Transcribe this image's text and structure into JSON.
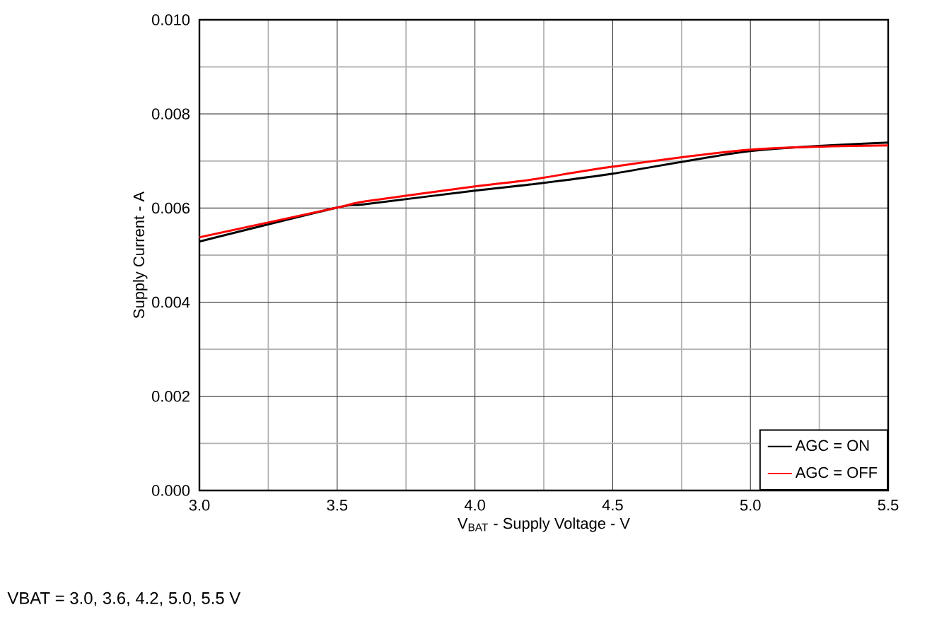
{
  "chart_data": {
    "type": "line",
    "xlabel": "V$_{BAT}$ - Supply Voltage - V",
    "ylabel": "Supply Current - A",
    "x": [
      3.0,
      3.5,
      3.6,
      4.0,
      4.2,
      4.5,
      5.0,
      5.5
    ],
    "series": [
      {
        "name": "AGC = ON",
        "color": "#000000",
        "values": [
          0.00529,
          0.00601,
          0.00608,
          0.00637,
          0.0065,
          0.00673,
          0.00721,
          0.00739
        ]
      },
      {
        "name": "AGC = OFF",
        "color": "#ff0000",
        "values": [
          0.00538,
          0.00601,
          0.00614,
          0.00646,
          0.0066,
          0.00688,
          0.00724,
          0.00733
        ]
      }
    ],
    "xlim": [
      3.0,
      5.5
    ],
    "ylim": [
      0.0,
      0.01
    ],
    "xticks": [
      {
        "value": 3.0,
        "label": "3.0"
      },
      {
        "value": 3.5,
        "label": "3.5"
      },
      {
        "value": 4.0,
        "label": "4.0"
      },
      {
        "value": 4.5,
        "label": "4.5"
      },
      {
        "value": 5.0,
        "label": "5.0"
      },
      {
        "value": 5.5,
        "label": "5.5"
      }
    ],
    "yticks": [
      {
        "value": 0.0,
        "label": "0.000"
      },
      {
        "value": 0.002,
        "label": "0.002"
      },
      {
        "value": 0.004,
        "label": "0.004"
      },
      {
        "value": 0.006,
        "label": "0.006"
      },
      {
        "value": 0.008,
        "label": "0.008"
      },
      {
        "value": 0.01,
        "label": "0.010"
      }
    ],
    "grid": true,
    "legend": "bottom right",
    "line_style": "solid",
    "annotations": [
      "VBAT = 3.0, 3.6, 4.2, 5.0, 5.5 V"
    ]
  }
}
